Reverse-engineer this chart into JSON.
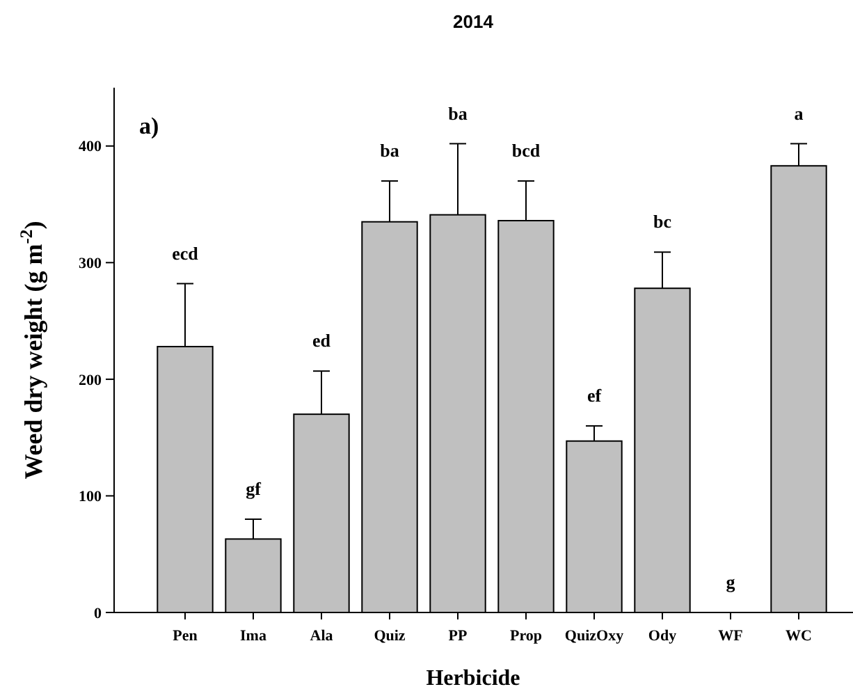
{
  "chart_data": {
    "type": "bar",
    "title": "2014",
    "xlabel": "Herbicide",
    "ylabel": "Weed dry weight (g m$^{-2}$)",
    "categories": [
      "Pen",
      "Ima",
      "Ala",
      "Quiz",
      "PP",
      "Prop",
      "QuizOxy",
      "Ody",
      "WF",
      "WC"
    ],
    "values": [
      228,
      63,
      170,
      335,
      341,
      336,
      147,
      278,
      0,
      383
    ],
    "errors": [
      [
        228,
        282
      ],
      [
        63,
        80
      ],
      [
        170,
        207
      ],
      [
        335,
        370
      ],
      [
        341,
        402
      ],
      [
        336,
        370
      ],
      [
        147,
        160
      ],
      [
        278,
        309
      ],
      null,
      [
        383,
        402
      ]
    ],
    "color": "#c0c0c0",
    "ylim": [
      0,
      450
    ],
    "yticks": [
      0,
      100,
      200,
      300,
      400
    ],
    "grid": false,
    "annotations": [
      "a)",
      {
        "text": "ecd",
        "x": "Pen",
        "y": 282
      },
      {
        "text": "gf",
        "x": "Ima",
        "y": 80
      },
      {
        "text": "ed",
        "x": "Ala",
        "y": 207
      },
      {
        "text": "ba",
        "x": "Quiz",
        "y": 370
      },
      {
        "text": "ba",
        "x": "PP",
        "y": 402
      },
      {
        "text": "bcd",
        "x": "Prop",
        "y": 370
      },
      {
        "text": "ef",
        "x": "QuizOxy",
        "y": 160
      },
      {
        "text": "bc",
        "x": "Ody",
        "y": 309
      },
      {
        "text": "g",
        "x": "WF",
        "y": 0
      },
      {
        "text": "a",
        "x": "WC",
        "y": 402
      }
    ]
  }
}
